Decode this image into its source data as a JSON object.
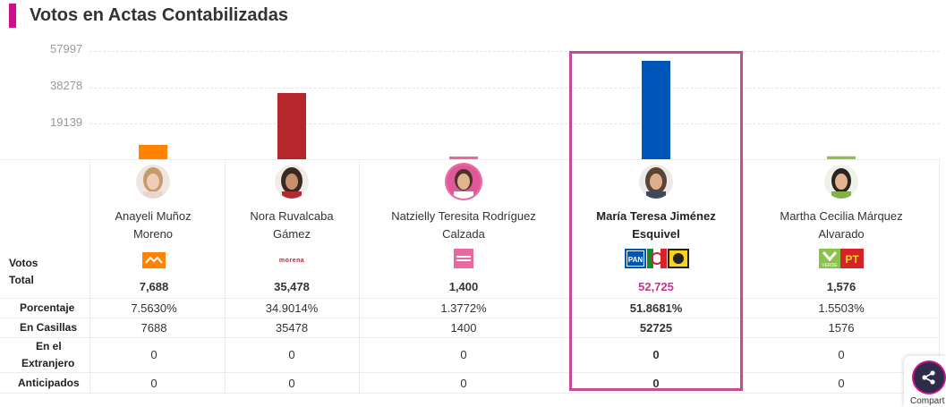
{
  "header": {
    "title": "Votos en Actas Contabilizadas",
    "accent_color": "#cc0f8f"
  },
  "chart_data": {
    "type": "bar",
    "y_ticks": [
      "57997",
      "38278",
      "19139"
    ],
    "ylim": [
      0,
      57997
    ],
    "categories": [
      "Anayeli Muñoz Moreno",
      "Nora Ruvalcaba Gámez",
      "Natzielly Teresita Rodríguez Calzada",
      "María Teresa Jiménez Esquivel",
      "Martha Cecilia Márquez Alvarado"
    ],
    "values": [
      7688,
      35478,
      1400,
      52725,
      1576
    ],
    "colors": [
      "#ff8200",
      "#b5272d",
      "#e8689f",
      "#0055b8",
      "#8bc34a"
    ],
    "grid": true,
    "highlighted": "María Teresa Jiménez Esquivel"
  },
  "row_labels": {
    "votos_line1": "Votos",
    "votos_line2": "Total",
    "porcentaje": "Porcentaje",
    "casillas": "En Casillas",
    "extranjero_line1": "En el",
    "extranjero_line2": "Extranjero",
    "anticipados": "Anticipados"
  },
  "candidates": [
    {
      "name_line1": "Anayeli Muñoz",
      "name_line2": "Moreno",
      "party_icon": "movimiento-ciudadano-logo",
      "total": "7,688",
      "porcentaje": "7.5630%",
      "casillas": "7688",
      "extranjero": "0",
      "anticipados": "0"
    },
    {
      "name_line1": "Nora Ruvalcaba",
      "name_line2": "Gámez",
      "party_icon": "morena-logo",
      "party_text": "morena",
      "total": "35,478",
      "porcentaje": "34.9014%",
      "casillas": "35478",
      "extranjero": "0",
      "anticipados": "0"
    },
    {
      "name_line1": "Natzielly Teresita Rodríguez",
      "name_line2": "Calzada",
      "party_icon": "fuerza-por-mexico-logo",
      "total": "1,400",
      "porcentaje": "1.3772%",
      "casillas": "1400",
      "extranjero": "0",
      "anticipados": "0"
    },
    {
      "name_line1": "María Teresa Jiménez",
      "name_line2": "Esquivel",
      "party_icon": "pan-pri-prd-logos",
      "party_text_pan": "PAN",
      "total": "52,725",
      "porcentaje": "51.8681%",
      "casillas": "52725",
      "extranjero": "0",
      "anticipados": "0"
    },
    {
      "name_line1": "Martha Cecilia Márquez",
      "name_line2": "Alvarado",
      "party_icon": "verde-pt-logos",
      "party_text_pt": "PT",
      "party_text_verde": "VERDE",
      "total": "1,576",
      "porcentaje": "1.5503%",
      "casillas": "1576",
      "extranjero": "0",
      "anticipados": "0"
    }
  ],
  "share": {
    "label": "Compart",
    "icon": "share-icon"
  }
}
